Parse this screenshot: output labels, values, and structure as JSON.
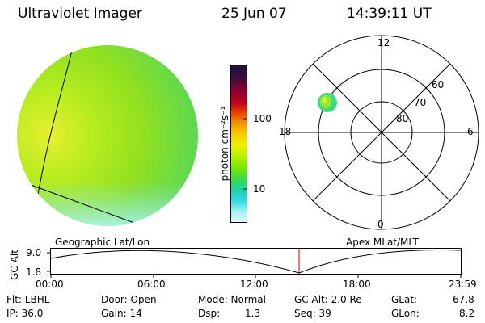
{
  "header": {
    "title": "Ultraviolet Imager",
    "date": "25 Jun 07",
    "time": "14:39:11 UT"
  },
  "colorbar": {
    "unit_label": "photon cm⁻²s⁻¹",
    "ticks": [
      "100",
      "10"
    ],
    "colors": [
      "#1a1040",
      "#3d0d3a",
      "#8a0033",
      "#c00018",
      "#e34000",
      "#f08a00",
      "#f5c000",
      "#f0f000",
      "#b8f000",
      "#70e800",
      "#30d860",
      "#20d0b0",
      "#30d8e0",
      "#a0f0f0",
      "#e8fafa"
    ]
  },
  "polar": {
    "mlt_labels": {
      "top": "12",
      "left": "18",
      "right": "6",
      "bottom": "0"
    },
    "lat_labels": [
      "60",
      "70",
      "80"
    ]
  },
  "timeline": {
    "left_label": "Geographic Lat/Lon",
    "right_label": "Apex MLat/MLT",
    "y_axis_label": "GC Alt",
    "y_ticks": [
      "9.0",
      "1.8"
    ],
    "x_ticks": [
      "00:00",
      "06:00",
      "12:00",
      "18:00",
      "23:59"
    ],
    "marker_color": "#c00000"
  },
  "footer": {
    "row1": {
      "filter": "Flt: LBHL",
      "door": "Door: Open",
      "mode": "Mode: Normal",
      "gc_alt": "GC Alt: 2.0 Re",
      "glat_label": "GLat:",
      "glat_value": "67.8"
    },
    "row2": {
      "ip": "IP: 36.0",
      "gain": "Gain: 14",
      "dsp_label": "Dsp:",
      "dsp_value": "1.3",
      "seq": "Seq: 39",
      "glon_label": "GLon:",
      "glon_value": "8.2"
    }
  }
}
